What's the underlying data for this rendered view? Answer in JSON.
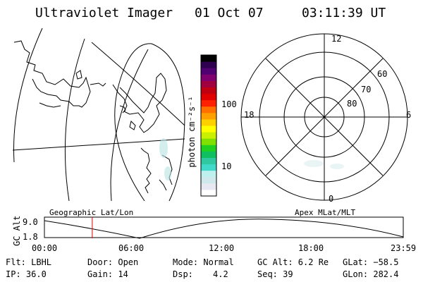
{
  "header": {
    "title": "Ultraviolet Imager",
    "date": "01 Oct 07",
    "time": "03:11:39 UT"
  },
  "colorbar": {
    "label": "photon cm⁻²s⁻¹",
    "ticks": [
      "100",
      "10"
    ],
    "colors": [
      "#ffffff",
      "#e8e8f2",
      "#cfe8ec",
      "#bff0f0",
      "#40d8c8",
      "#30c8a0",
      "#10c060",
      "#20d020",
      "#80e000",
      "#c8f000",
      "#ffff00",
      "#ffd000",
      "#ffa000",
      "#ff7000",
      "#ff2000",
      "#e00000",
      "#c00010",
      "#a00040",
      "#800070",
      "#500070",
      "#300050",
      "#000000"
    ]
  },
  "map": {
    "label": "Geographic Lat/Lon"
  },
  "polar": {
    "label": "Apex MLat/MLT",
    "mlt": [
      "12",
      "18",
      "6",
      "0"
    ],
    "mlat": [
      "60",
      "70",
      "80"
    ]
  },
  "altplot": {
    "ylabel": "GC Alt",
    "yticks": [
      "9.0",
      "1.8"
    ],
    "xticks": [
      "00:00",
      "06:00",
      "12:00",
      "18:00",
      "23:59"
    ],
    "marker_hour": 3.2
  },
  "info": {
    "row1": {
      "flt": "Flt: LBHL",
      "door": "Door: Open",
      "mode": "Mode: Normal",
      "gcalt": "GC Alt: 6.2 Re",
      "glat": "GLat: −58.5"
    },
    "row2": {
      "ip": "IP: 36.0",
      "gain": "Gain: 14",
      "dsp_label": "Dsp:",
      "dsp_val": "4.2",
      "seq": "Seq: 39",
      "glon": "GLon: 282.4"
    }
  }
}
